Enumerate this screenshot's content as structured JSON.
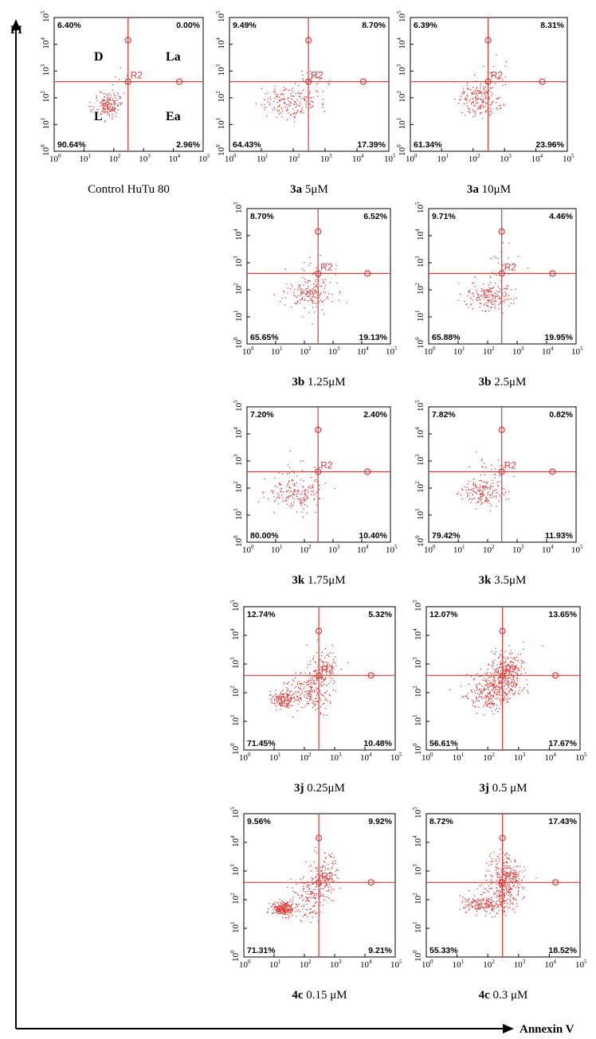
{
  "axes": {
    "y_label": "PI",
    "x_label": "Annexin V"
  },
  "tick_labels": [
    "0",
    "1",
    "2",
    "3",
    "4",
    "5"
  ],
  "tick_base": "10",
  "gate_label": "R2",
  "quadrant_names": {
    "D": "D",
    "La": "La",
    "L": "L",
    "Ea": "Ea"
  },
  "chart_data": [
    {
      "id": "control",
      "type": "scatter",
      "caption_bold": "",
      "caption": "Control HuTu 80",
      "xlim": [
        1,
        100000
      ],
      "ylim": [
        1,
        100000
      ],
      "xscale": "log",
      "yscale": "log",
      "gate": [
        300,
        400
      ],
      "quadrants": {
        "upper_left": "6.40%",
        "upper_right": "0.00%",
        "lower_left": "90.64%",
        "lower_right": "2.96%"
      },
      "show_quadrant_names": true,
      "clusters": [
        {
          "x": 60,
          "y": 55,
          "n": 160,
          "sx": 0.22,
          "sy": 0.2
        },
        {
          "x": 150,
          "y": 250,
          "n": 12,
          "sx": 0.3,
          "sy": 0.4
        }
      ]
    },
    {
      "id": "3a-5",
      "type": "scatter",
      "caption_bold": "3a",
      "caption": " 5μM",
      "xlim": [
        1,
        100000
      ],
      "ylim": [
        1,
        100000
      ],
      "xscale": "log",
      "yscale": "log",
      "gate": [
        300,
        400
      ],
      "quadrants": {
        "upper_left": "9.49%",
        "upper_right": "8.70%",
        "lower_left": "64.43%",
        "lower_right": "17.39%"
      },
      "show_quadrant_names": false,
      "clusters": [
        {
          "x": 70,
          "y": 70,
          "n": 170,
          "sx": 0.45,
          "sy": 0.28
        },
        {
          "x": 300,
          "y": 400,
          "n": 35,
          "sx": 0.35,
          "sy": 0.35
        }
      ]
    },
    {
      "id": "3a-10",
      "type": "scatter",
      "caption_bold": "3a",
      "caption": " 10μM",
      "xlim": [
        1,
        100000
      ],
      "ylim": [
        1,
        100000
      ],
      "xscale": "log",
      "yscale": "log",
      "gate": [
        300,
        400
      ],
      "quadrants": {
        "upper_left": "6.39%",
        "upper_right": "8.31%",
        "lower_left": "61.34%",
        "lower_right": "23.96%"
      },
      "show_quadrant_names": false,
      "clusters": [
        {
          "x": 150,
          "y": 80,
          "n": 180,
          "sx": 0.35,
          "sy": 0.3
        },
        {
          "x": 350,
          "y": 400,
          "n": 30,
          "sx": 0.3,
          "sy": 0.35
        }
      ]
    },
    {
      "id": "3b-125",
      "type": "scatter",
      "caption_bold": "3b",
      "caption": " 1.25μM",
      "xlim": [
        1,
        100000
      ],
      "ylim": [
        1,
        100000
      ],
      "xscale": "log",
      "yscale": "log",
      "gate": [
        300,
        400
      ],
      "quadrants": {
        "upper_left": "8.70%",
        "upper_right": "6.52%",
        "lower_left": "65.65%",
        "lower_right": "19.13%"
      },
      "show_quadrant_names": false,
      "clusters": [
        {
          "x": 150,
          "y": 80,
          "n": 170,
          "sx": 0.4,
          "sy": 0.28
        },
        {
          "x": 300,
          "y": 500,
          "n": 25,
          "sx": 0.35,
          "sy": 0.3
        }
      ]
    },
    {
      "id": "3b-25",
      "type": "scatter",
      "caption_bold": "3b",
      "caption": " 2.5μM",
      "xlim": [
        1,
        100000
      ],
      "ylim": [
        1,
        100000
      ],
      "xscale": "log",
      "yscale": "log",
      "gate": [
        300,
        400
      ],
      "quadrants": {
        "upper_left": "9.71%",
        "upper_right": "4.46%",
        "lower_left": "65.88%",
        "lower_right": "19.95%"
      },
      "show_quadrant_names": false,
      "clusters": [
        {
          "x": 100,
          "y": 60,
          "n": 180,
          "sx": 0.42,
          "sy": 0.22
        },
        {
          "x": 300,
          "y": 800,
          "n": 25,
          "sx": 0.3,
          "sy": 0.3
        }
      ]
    },
    {
      "id": "3k-175",
      "type": "scatter",
      "caption_bold": "3k",
      "caption": " 1.75μM",
      "xlim": [
        1,
        100000
      ],
      "ylim": [
        1,
        100000
      ],
      "xscale": "log",
      "yscale": "log",
      "gate": [
        300,
        400
      ],
      "quadrants": {
        "upper_left": "7.20%",
        "upper_right": "2.40%",
        "lower_left": "80.00%",
        "lower_right": "10.40%"
      },
      "show_quadrant_names": false,
      "clusters": [
        {
          "x": 40,
          "y": 70,
          "n": 170,
          "sx": 0.45,
          "sy": 0.3
        },
        {
          "x": 80,
          "y": 400,
          "n": 20,
          "sx": 0.4,
          "sy": 0.3
        }
      ]
    },
    {
      "id": "3k-35",
      "type": "scatter",
      "caption_bold": "3k",
      "caption": " 3.5μM",
      "xlim": [
        1,
        100000
      ],
      "ylim": [
        1,
        100000
      ],
      "xscale": "log",
      "yscale": "log",
      "gate": [
        300,
        400
      ],
      "quadrants": {
        "upper_left": "7.82%",
        "upper_right": "0.82%",
        "lower_left": "79.42%",
        "lower_right": "11.93%"
      },
      "show_quadrant_names": false,
      "clusters": [
        {
          "x": 60,
          "y": 80,
          "n": 170,
          "sx": 0.35,
          "sy": 0.25
        },
        {
          "x": 120,
          "y": 500,
          "n": 20,
          "sx": 0.4,
          "sy": 0.3
        }
      ]
    },
    {
      "id": "3j-025",
      "type": "scatter",
      "caption_bold": "3j",
      "caption": " 0.25μM",
      "xlim": [
        1,
        100000
      ],
      "ylim": [
        1,
        100000
      ],
      "xscale": "log",
      "yscale": "log",
      "gate": [
        300,
        400
      ],
      "quadrants": {
        "upper_left": "12.74%",
        "upper_right": "5.32%",
        "lower_left": "71.45%",
        "lower_right": "10.48%"
      },
      "show_quadrant_names": false,
      "clusters": [
        {
          "x": 20,
          "y": 60,
          "n": 160,
          "sx": 0.2,
          "sy": 0.15
        },
        {
          "x": 150,
          "y": 120,
          "n": 200,
          "sx": 0.35,
          "sy": 0.35
        },
        {
          "x": 400,
          "y": 700,
          "n": 120,
          "sx": 0.25,
          "sy": 0.35
        }
      ]
    },
    {
      "id": "3j-05",
      "type": "scatter",
      "caption_bold": "3j",
      "caption": " 0.5 μM",
      "xlim": [
        1,
        100000
      ],
      "ylim": [
        1,
        100000
      ],
      "xscale": "log",
      "yscale": "log",
      "gate": [
        300,
        400
      ],
      "quadrants": {
        "upper_left": "12.07%",
        "upper_right": "13.65%",
        "lower_left": "56.61%",
        "lower_right": "17.67%"
      },
      "show_quadrant_names": false,
      "clusters": [
        {
          "x": 100,
          "y": 100,
          "n": 220,
          "sx": 0.4,
          "sy": 0.3
        },
        {
          "x": 300,
          "y": 200,
          "n": 150,
          "sx": 0.3,
          "sy": 0.3
        },
        {
          "x": 400,
          "y": 800,
          "n": 180,
          "sx": 0.3,
          "sy": 0.35
        }
      ]
    },
    {
      "id": "4c-015",
      "type": "scatter",
      "caption_bold": "4c",
      "caption": " 0.15 μM",
      "xlim": [
        1,
        100000
      ],
      "ylim": [
        1,
        100000
      ],
      "xscale": "log",
      "yscale": "log",
      "gate": [
        300,
        400
      ],
      "quadrants": {
        "upper_left": "9.56%",
        "upper_right": "9.92%",
        "lower_left": "71.31%",
        "lower_right": "9.21%"
      },
      "show_quadrant_names": false,
      "clusters": [
        {
          "x": 20,
          "y": 50,
          "n": 240,
          "sx": 0.18,
          "sy": 0.12
        },
        {
          "x": 150,
          "y": 120,
          "n": 150,
          "sx": 0.35,
          "sy": 0.35
        },
        {
          "x": 400,
          "y": 800,
          "n": 130,
          "sx": 0.25,
          "sy": 0.35
        }
      ]
    },
    {
      "id": "4c-03",
      "type": "scatter",
      "caption_bold": "4c",
      "caption": " 0.3 μM",
      "xlim": [
        1,
        100000
      ],
      "ylim": [
        1,
        100000
      ],
      "xscale": "log",
      "yscale": "log",
      "gate": [
        300,
        400
      ],
      "quadrants": {
        "upper_left": "8.72%",
        "upper_right": "17.43%",
        "lower_left": "55.33%",
        "lower_right": "18.52%"
      },
      "show_quadrant_names": false,
      "clusters": [
        {
          "x": 60,
          "y": 70,
          "n": 180,
          "sx": 0.35,
          "sy": 0.15
        },
        {
          "x": 300,
          "y": 150,
          "n": 160,
          "sx": 0.3,
          "sy": 0.3
        },
        {
          "x": 400,
          "y": 900,
          "n": 200,
          "sx": 0.3,
          "sy": 0.35
        }
      ]
    }
  ]
}
